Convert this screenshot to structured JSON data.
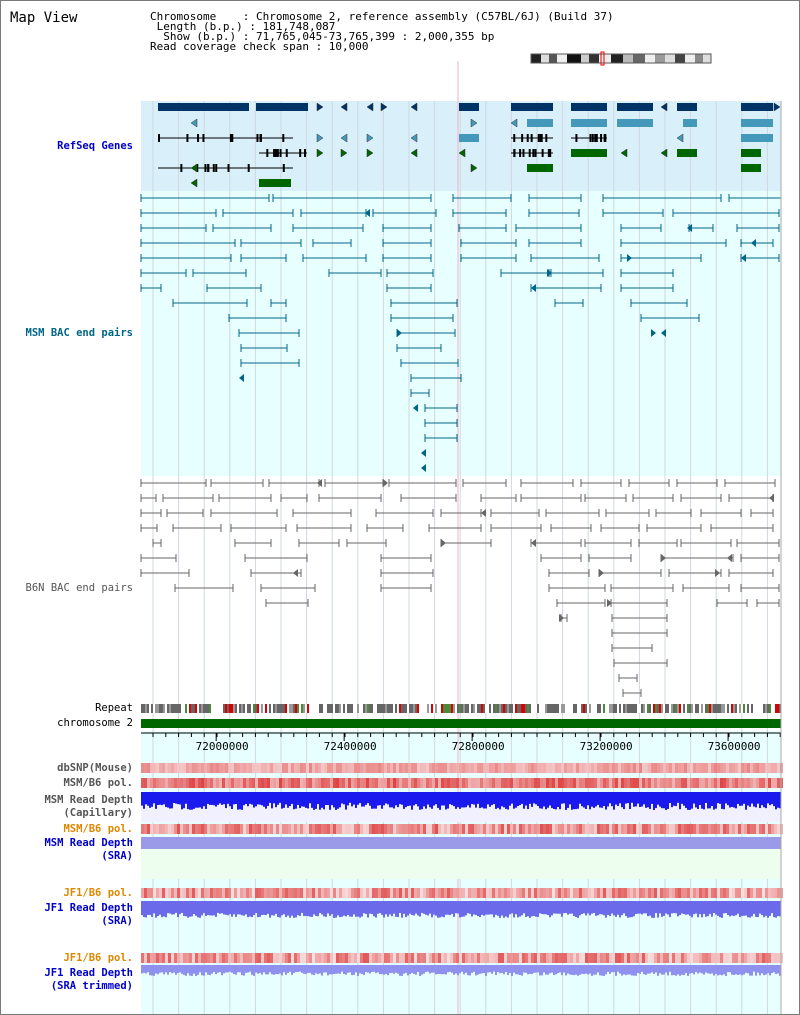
{
  "header": {
    "title": "Map View",
    "info_lines": [
      "Chromosome    : Chromosome 2, reference assembly (C57BL/6J) (Build 37)",
      " Length (b.p.) : 181,748,087",
      "  Show (b.p.) : 71,765,045-73,765,399 : 2,000,355 bp",
      "Read coverage check span : 10,000"
    ]
  },
  "tracks": {
    "refseq": "RefSeq Genes",
    "msm_bac": "MSM BAC end pairs",
    "b6n_bac": "B6N BAC end pairs",
    "repeat": "Repeat",
    "chromosome": "chromosome 2",
    "dbsnp": "dbSNP(Mouse)",
    "msm_b6_pol_1": "MSM/B6 pol.",
    "msm_depth_cap_1": "MSM Read Depth",
    "msm_depth_cap_2": "(Capillary)",
    "msm_b6_pol_2": "MSM/B6 pol.",
    "msm_depth_sra_1": "MSM Read Depth",
    "msm_depth_sra_2": "(SRA)",
    "jf1_b6_pol_1": "JF1/B6 pol.",
    "jf1_depth_sra_1": "JF1 Read Depth",
    "jf1_depth_sra_2": "(SRA)",
    "jf1_b6_pol_2": "JF1/B6 pol.",
    "jf1_depth_trim_1": "JF1 Read Depth",
    "jf1_depth_trim_2": "(SRA trimmed)"
  },
  "axis": {
    "ticks": [
      "72000000",
      "72400000",
      "72800000",
      "73200000",
      "73600000"
    ],
    "tick_values": [
      72000000,
      72400000,
      72800000,
      73200000,
      73600000
    ],
    "range": [
      71765045,
      73765399
    ]
  },
  "colors": {
    "refseq_bg": "#d9f0fb",
    "track_bg": "#e8ffff",
    "gene_navy": "#003366",
    "gene_teal": "#4499bb",
    "gene_green": "#006600",
    "msm_bac": "#006688",
    "b6n_bac": "#666666",
    "chromosome": "#006600",
    "label_blue": "#0000cc",
    "label_teal": "#006688",
    "label_orange": "#dd8800",
    "label_gray": "#555555"
  }
}
